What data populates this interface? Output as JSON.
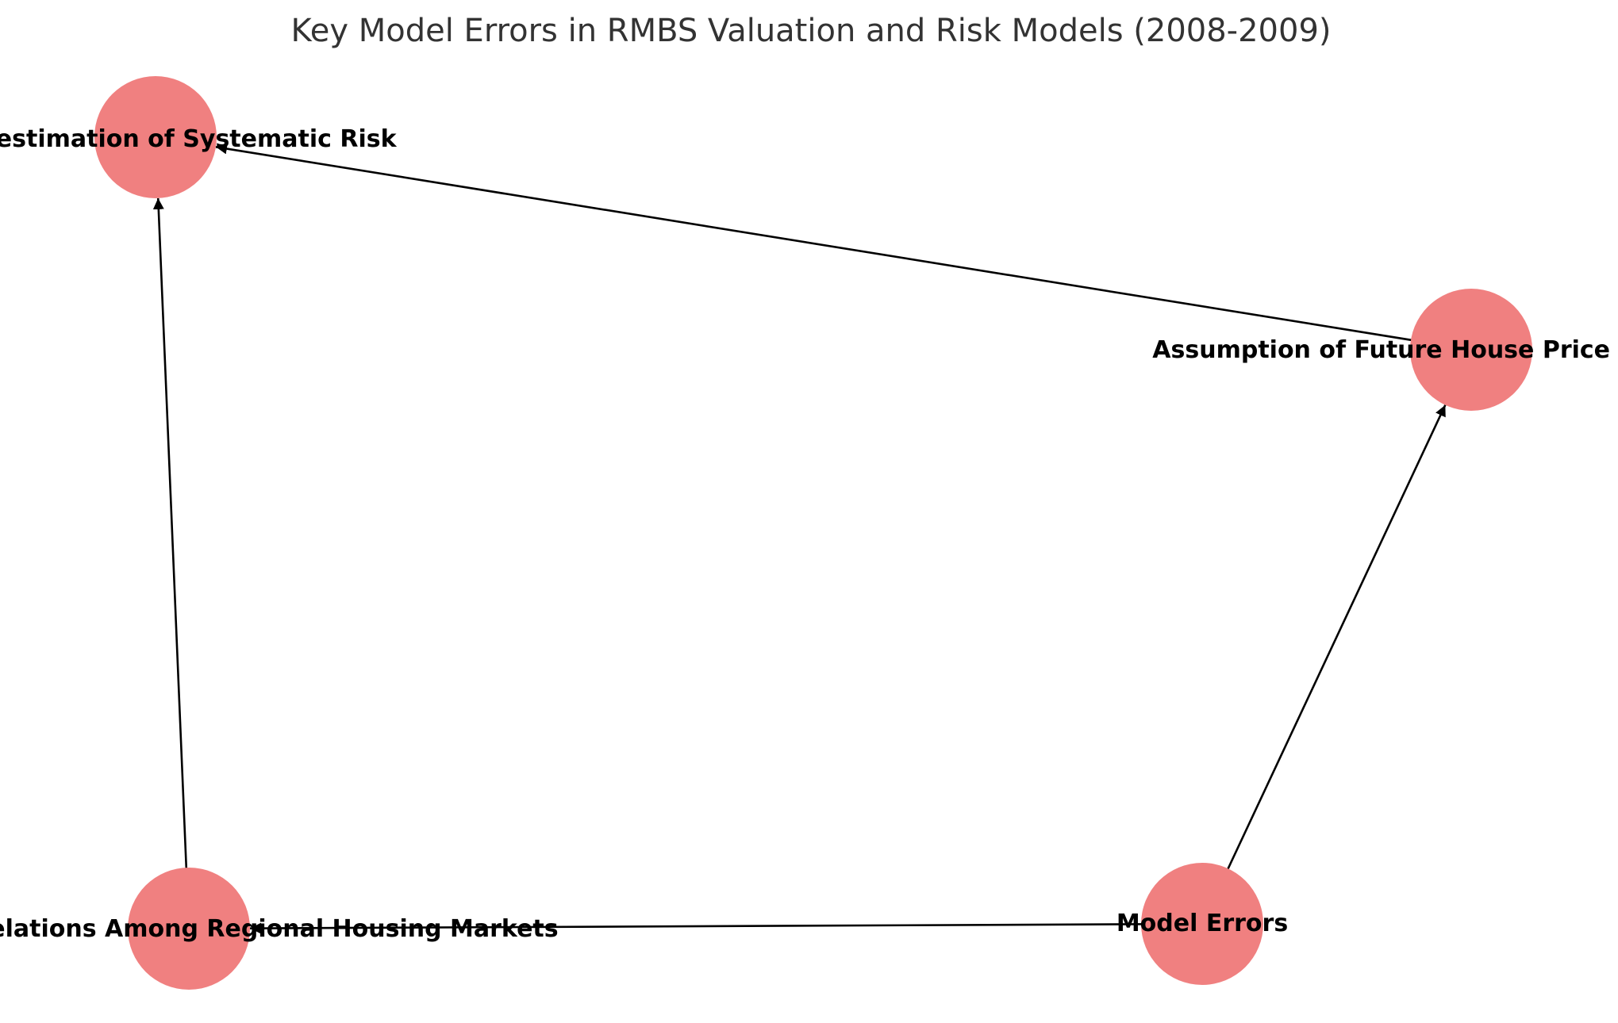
{
  "diagram": {
    "title": "Key Model Errors in RMBS Valuation and Risk Models (2008-2009)",
    "node_color": "#f08080",
    "edge_color": "#000000",
    "nodes": [
      {
        "id": "systematic",
        "label": "Underestimation of Systematic Risk"
      },
      {
        "id": "house",
        "label": "Assumption of Future House Price Appreciation"
      },
      {
        "id": "correlations",
        "label": "Ignored Correlations Among Regional Housing Markets"
      },
      {
        "id": "model",
        "label": "Model Errors"
      }
    ],
    "edges": [
      {
        "from": "model",
        "to": "house"
      },
      {
        "from": "model",
        "to": "correlations"
      },
      {
        "from": "house",
        "to": "systematic"
      },
      {
        "from": "correlations",
        "to": "systematic"
      }
    ]
  }
}
